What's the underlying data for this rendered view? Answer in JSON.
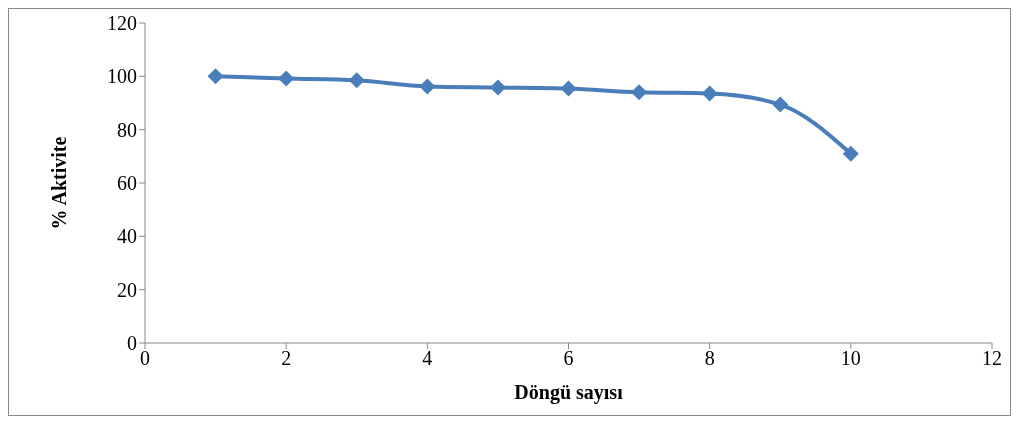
{
  "chart_data": {
    "type": "line",
    "xlabel": "Döngü sayısı",
    "ylabel": "% Aktivite",
    "x": [
      1,
      2,
      3,
      4,
      5,
      6,
      7,
      8,
      9,
      10
    ],
    "series": [
      {
        "color": "#4a7ebb",
        "values": [
          100,
          99.2,
          98.5,
          96.2,
          95.8,
          95.4,
          94,
          93.6,
          89.4,
          71
        ]
      }
    ],
    "xlim": [
      0,
      12
    ],
    "xticks": [
      0,
      2,
      4,
      6,
      8,
      10,
      12
    ],
    "ylim": [
      0,
      120
    ],
    "yticks": [
      0,
      20,
      40,
      60,
      80,
      100,
      120
    ],
    "grid": false,
    "legend": false,
    "marker": "diamond",
    "line_style": "solid"
  }
}
